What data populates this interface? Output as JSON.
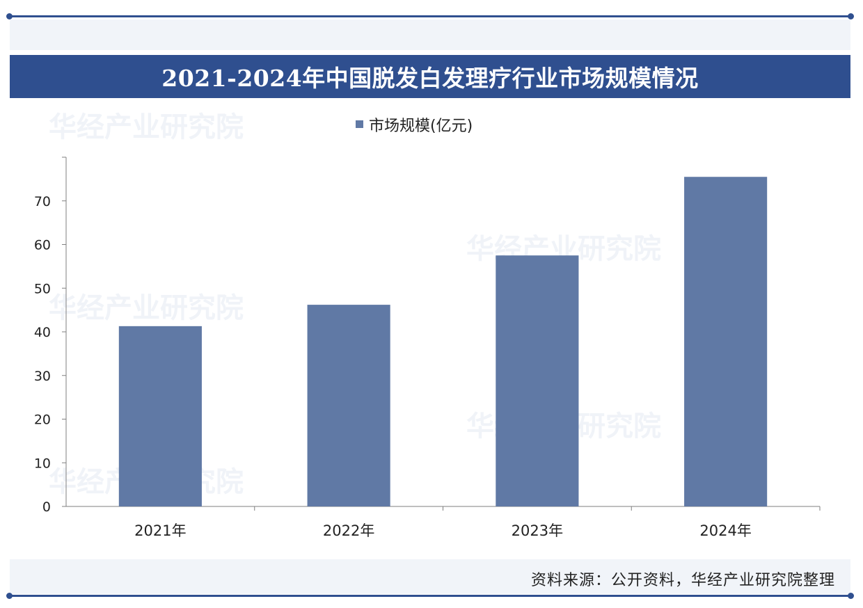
{
  "title": "2021-2024年中国脱发白发理疗行业市场规模情况",
  "source": "资料来源：公开资料，华经产业研究院整理",
  "watermark_text": "华经产业研究院",
  "colors": {
    "brand": "#2f4f8f",
    "bar": "#6079a5",
    "axis": "#7f7f7f"
  },
  "chart_data": {
    "type": "bar",
    "categories": [
      "2021年",
      "2022年",
      "2023年",
      "2024年"
    ],
    "series": [
      {
        "name": "市场规模(亿元)",
        "values": [
          41.3,
          46.2,
          57.5,
          75.5
        ]
      }
    ],
    "title": "2021-2024年中国脱发白发理疗行业市场规模情况",
    "xlabel": "",
    "ylabel": "",
    "ylim": [
      0,
      80
    ],
    "yticks": [
      0,
      10,
      20,
      30,
      40,
      50,
      60,
      70
    ],
    "grid": false,
    "legend": "top"
  }
}
